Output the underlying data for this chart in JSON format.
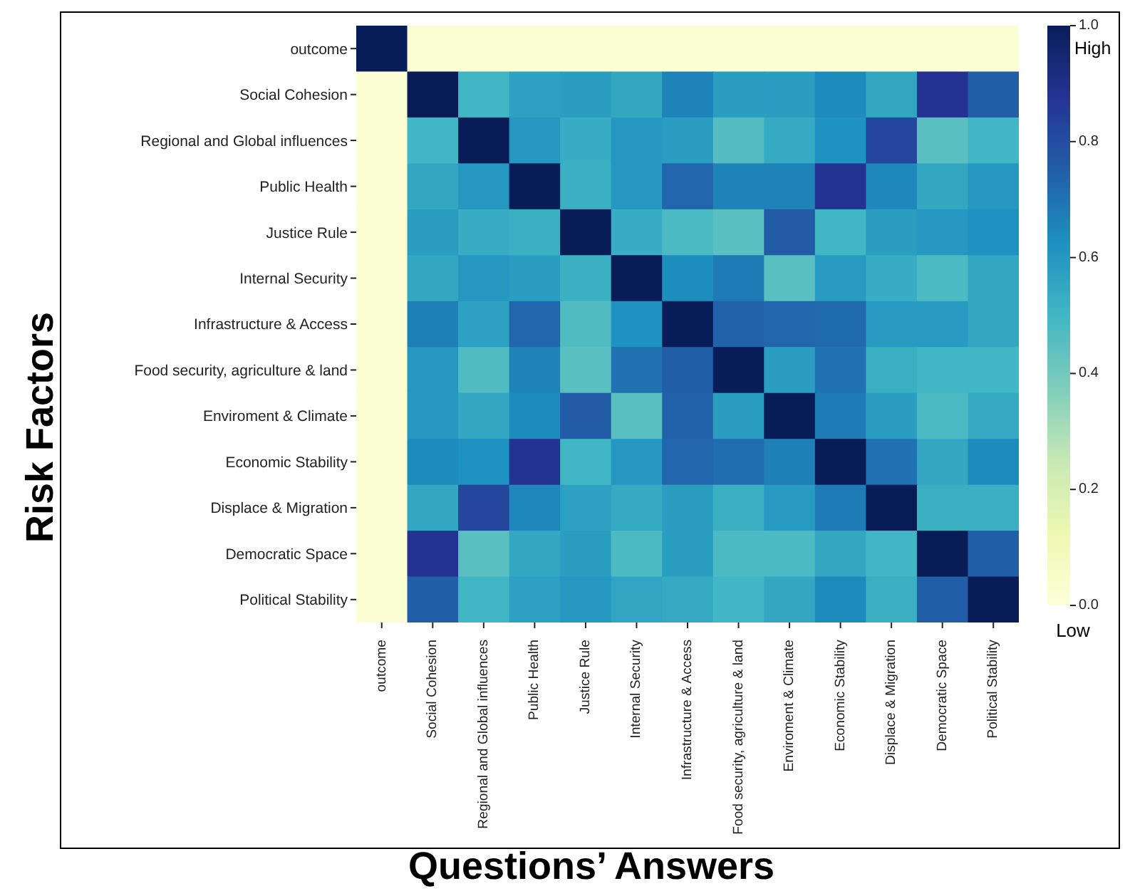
{
  "chart_data": {
    "type": "heatmap",
    "xlabel": "Questions’ Answers",
    "ylabel": "Risk Factors",
    "categories": [
      "outcome",
      "Social Cohesion",
      "Regional and Global influences",
      "Public Health",
      "Justice Rule",
      "Internal Security",
      "Infrastructure & Access",
      "Food security, agriculture & land",
      "Enviroment & Climate",
      "Economic Stability",
      "Displace & Migration",
      "Democratic Space",
      "Political Stability"
    ],
    "y_categories": [
      "outcome",
      "Social Cohesion",
      "Regional and Global influences",
      "Public Health",
      "Justice Rule",
      "Internal Security",
      "Infrastructure & Access",
      "Food security, agriculture & land",
      "Enviroment & Climate",
      "Economic Stability",
      "Displace & Migration",
      "Democratic Space",
      "Political Stability"
    ],
    "cells": [
      [
        1,
        0.02,
        0.02,
        0.02,
        0.02,
        0.02,
        0.02,
        0.02,
        0.02,
        0.02,
        0.02,
        0.02,
        0.02
      ],
      [
        0.02,
        1,
        0.5,
        0.57,
        0.58,
        0.55,
        0.66,
        0.58,
        0.58,
        0.64,
        0.55,
        0.88,
        0.75
      ],
      [
        0.02,
        0.5,
        1,
        0.6,
        0.53,
        0.6,
        0.58,
        0.46,
        0.54,
        0.62,
        0.82,
        0.45,
        0.5
      ],
      [
        0.02,
        0.55,
        0.6,
        1,
        0.52,
        0.6,
        0.73,
        0.66,
        0.66,
        0.88,
        0.65,
        0.55,
        0.6
      ],
      [
        0.02,
        0.58,
        0.53,
        0.52,
        1,
        0.53,
        0.48,
        0.45,
        0.76,
        0.5,
        0.58,
        0.6,
        0.62
      ],
      [
        0.02,
        0.55,
        0.6,
        0.58,
        0.52,
        1,
        0.63,
        0.68,
        0.45,
        0.59,
        0.53,
        0.48,
        0.55
      ],
      [
        0.02,
        0.67,
        0.57,
        0.73,
        0.47,
        0.62,
        1,
        0.74,
        0.73,
        0.72,
        0.59,
        0.59,
        0.55
      ],
      [
        0.02,
        0.6,
        0.47,
        0.66,
        0.45,
        0.7,
        0.75,
        1,
        0.58,
        0.7,
        0.52,
        0.5,
        0.5
      ],
      [
        0.02,
        0.6,
        0.55,
        0.64,
        0.76,
        0.45,
        0.74,
        0.58,
        1,
        0.68,
        0.58,
        0.48,
        0.54
      ],
      [
        0.02,
        0.64,
        0.62,
        0.88,
        0.5,
        0.6,
        0.73,
        0.71,
        0.67,
        1,
        0.7,
        0.55,
        0.64
      ],
      [
        0.02,
        0.55,
        0.82,
        0.65,
        0.57,
        0.54,
        0.58,
        0.52,
        0.59,
        0.68,
        1,
        0.52,
        0.52
      ],
      [
        0.02,
        0.88,
        0.45,
        0.55,
        0.58,
        0.48,
        0.58,
        0.48,
        0.48,
        0.55,
        0.5,
        1,
        0.75
      ],
      [
        0.02,
        0.75,
        0.5,
        0.57,
        0.6,
        0.56,
        0.54,
        0.5,
        0.55,
        0.64,
        0.52,
        0.75,
        1
      ]
    ],
    "clim": [
      0,
      1
    ],
    "cticks": [
      {
        "value": 0,
        "label": "0.0"
      },
      0.2,
      0.4,
      0.6,
      0.8,
      {
        "value": 1,
        "label": "1.0"
      }
    ],
    "annotations": [
      "High",
      "Low"
    ]
  }
}
